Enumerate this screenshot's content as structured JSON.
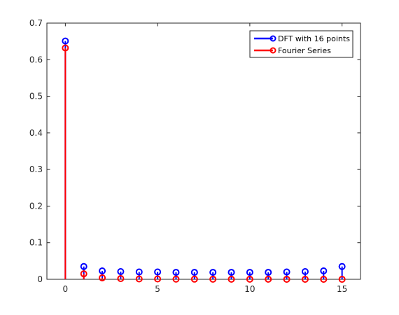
{
  "chart_data": {
    "type": "stem",
    "x": [
      0,
      1,
      2,
      3,
      4,
      5,
      6,
      7,
      8,
      9,
      10,
      11,
      12,
      13,
      14,
      15
    ],
    "series": [
      {
        "name": "DFT with 16 points",
        "color": "#0000ff",
        "values": [
          0.651,
          0.035,
          0.023,
          0.021,
          0.02,
          0.02,
          0.019,
          0.019,
          0.019,
          0.019,
          0.019,
          0.019,
          0.02,
          0.021,
          0.023,
          0.035
        ]
      },
      {
        "name": "Fourier Series",
        "color": "#ff0000",
        "values": [
          0.632,
          0.015,
          0.004,
          0.002,
          0.001,
          0.001,
          0.0005,
          0.0004,
          0.0003,
          0.0002,
          0.0002,
          0.0002,
          0.0001,
          0.0001,
          0.0001,
          0.0001
        ]
      }
    ],
    "xlim": [
      -1,
      16
    ],
    "ylim": [
      0,
      0.7
    ],
    "xticks": [
      0,
      5,
      10,
      15
    ],
    "xtick_labels": [
      "0",
      "5",
      "10",
      "15"
    ],
    "yticks": [
      0,
      0.1,
      0.2,
      0.3,
      0.4,
      0.5,
      0.6,
      0.7
    ],
    "ytick_labels": [
      "0",
      "0.1",
      "0.2",
      "0.3",
      "0.4",
      "0.5",
      "0.6",
      "0.7"
    ],
    "grid": false,
    "legend_position": "top-right",
    "axis_color": "#262626"
  }
}
